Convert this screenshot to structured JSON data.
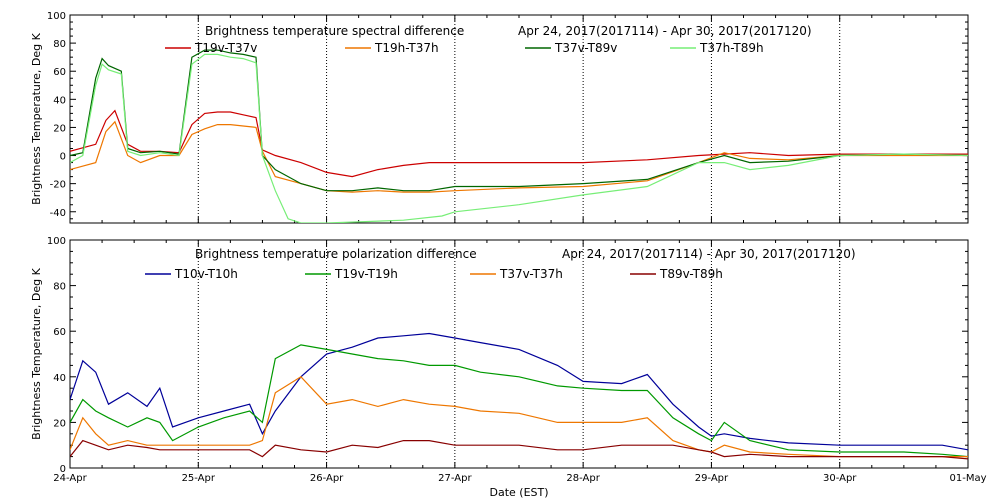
{
  "chart_data": [
    {
      "type": "line",
      "title": "Brightness temperature spectral difference",
      "date_range": "Apr 24, 2017(2017114)  - Apr 30, 2017(2017120)",
      "xlabel": "",
      "ylabel": "Brightness Temperature, Deg K",
      "ylim": [
        -48,
        100
      ],
      "yticks": [
        -40,
        -20,
        0,
        20,
        40,
        60,
        80,
        100
      ],
      "xlim": [
        0,
        7
      ],
      "xticks": [
        0,
        1,
        2,
        3,
        4,
        5,
        6,
        7
      ],
      "xtick_labels": [
        "",
        "",
        "",
        "",
        "",
        "",
        "",
        ""
      ],
      "grid": "vertical dotted at day boundaries",
      "legend_position": "top",
      "series": [
        {
          "name": "T19v-T37v",
          "color": "#cc0000",
          "x": [
            0,
            0.2,
            0.28,
            0.35,
            0.45,
            0.55,
            0.7,
            0.85,
            0.95,
            1.05,
            1.15,
            1.25,
            1.35,
            1.45,
            1.5,
            1.6,
            1.8,
            2.0,
            2.2,
            2.4,
            2.6,
            2.8,
            3.0,
            3.5,
            4.0,
            4.5,
            4.9,
            5.1,
            5.3,
            5.6,
            6.0,
            6.5,
            7.0
          ],
          "y": [
            3,
            8,
            25,
            32,
            8,
            3,
            3,
            2,
            22,
            30,
            31,
            31,
            29,
            27,
            4,
            0,
            -5,
            -12,
            -15,
            -10,
            -7,
            -5,
            -5,
            -5,
            -5,
            -3,
            0,
            1,
            2,
            0,
            1,
            1,
            1
          ]
        },
        {
          "name": "T19h-T37h",
          "color": "#ee7700",
          "x": [
            0,
            0.2,
            0.28,
            0.35,
            0.45,
            0.55,
            0.7,
            0.85,
            0.95,
            1.05,
            1.15,
            1.25,
            1.35,
            1.45,
            1.5,
            1.6,
            1.8,
            2.0,
            2.2,
            2.4,
            2.6,
            2.8,
            3.0,
            3.5,
            4.0,
            4.5,
            4.9,
            5.1,
            5.3,
            5.6,
            6.0,
            6.5,
            7.0
          ],
          "y": [
            -10,
            -5,
            17,
            24,
            0,
            -5,
            0,
            0,
            15,
            19,
            22,
            22,
            21,
            20,
            3,
            -15,
            -20,
            -25,
            -26,
            -25,
            -26,
            -26,
            -25,
            -23,
            -22,
            -18,
            -5,
            2,
            -2,
            -3,
            0,
            0,
            0
          ]
        },
        {
          "name": "T37v-T89v",
          "color": "#006600",
          "x": [
            0,
            0.1,
            0.2,
            0.25,
            0.3,
            0.4,
            0.45,
            0.55,
            0.7,
            0.85,
            0.95,
            1.05,
            1.15,
            1.25,
            1.35,
            1.45,
            1.5,
            1.6,
            1.8,
            2.0,
            2.2,
            2.4,
            2.6,
            2.8,
            3.0,
            3.5,
            4.0,
            4.5,
            4.9,
            5.1,
            5.3,
            5.6,
            6.0,
            6.5,
            7.0
          ],
          "y": [
            0,
            2,
            55,
            69,
            64,
            60,
            5,
            2,
            3,
            1,
            70,
            75,
            75,
            73,
            72,
            70,
            0,
            -10,
            -20,
            -25,
            -25,
            -23,
            -25,
            -25,
            -22,
            -22,
            -20,
            -17,
            -5,
            0,
            -5,
            -4,
            0,
            1,
            0
          ]
        },
        {
          "name": "T37h-T89h",
          "color": "#77ee77",
          "x": [
            0,
            0.1,
            0.2,
            0.25,
            0.3,
            0.4,
            0.45,
            0.55,
            0.7,
            0.85,
            0.95,
            1.05,
            1.15,
            1.25,
            1.35,
            1.45,
            1.5,
            1.6,
            1.7,
            1.8,
            2.0,
            2.3,
            2.6,
            2.9,
            3.0,
            3.5,
            4.0,
            4.5,
            4.9,
            5.1,
            5.3,
            5.6,
            6.0,
            6.5,
            7.0
          ],
          "y": [
            -5,
            0,
            50,
            65,
            61,
            58,
            3,
            0,
            2,
            0,
            65,
            72,
            72,
            70,
            69,
            66,
            0,
            -25,
            -45,
            -48,
            -48,
            -47,
            -46,
            -43,
            -40,
            -35,
            -28,
            -22,
            -5,
            -5,
            -10,
            -7,
            0,
            1,
            0
          ]
        }
      ]
    },
    {
      "type": "line",
      "title": "Brightness temperature polarization difference",
      "date_range": "Apr 24, 2017(2017114)  - Apr 30, 2017(2017120)",
      "xlabel": "Date (EST)",
      "ylabel": "Brightness Temperature, Deg K",
      "ylim": [
        0,
        100
      ],
      "yticks": [
        0,
        20,
        40,
        60,
        80,
        100
      ],
      "xlim": [
        0,
        7
      ],
      "xticks": [
        0,
        1,
        2,
        3,
        4,
        5,
        6,
        7
      ],
      "xtick_labels": [
        "24-Apr",
        "25-Apr",
        "26-Apr",
        "27-Apr",
        "28-Apr",
        "29-Apr",
        "30-Apr",
        "01-May"
      ],
      "grid": "vertical dotted at day boundaries",
      "legend_position": "top",
      "series": [
        {
          "name": "T10v-T10h",
          "color": "#000099",
          "x": [
            0,
            0.1,
            0.2,
            0.3,
            0.45,
            0.6,
            0.7,
            0.8,
            1.0,
            1.2,
            1.4,
            1.5,
            1.6,
            1.8,
            2.0,
            2.2,
            2.4,
            2.6,
            2.8,
            3.0,
            3.2,
            3.5,
            3.8,
            4.0,
            4.3,
            4.5,
            4.7,
            4.9,
            5.0,
            5.1,
            5.3,
            5.6,
            6.0,
            6.5,
            6.8,
            7.0
          ],
          "y": [
            30,
            47,
            42,
            28,
            33,
            27,
            35,
            18,
            22,
            25,
            28,
            15,
            25,
            40,
            50,
            53,
            57,
            58,
            59,
            57,
            55,
            52,
            45,
            38,
            37,
            41,
            28,
            18,
            14,
            15,
            13,
            11,
            10,
            10,
            10,
            8
          ]
        },
        {
          "name": "T19v-T19h",
          "color": "#009900",
          "x": [
            0,
            0.1,
            0.2,
            0.3,
            0.45,
            0.6,
            0.7,
            0.8,
            1.0,
            1.2,
            1.4,
            1.5,
            1.6,
            1.8,
            2.0,
            2.2,
            2.4,
            2.6,
            2.8,
            3.0,
            3.2,
            3.5,
            3.8,
            4.0,
            4.3,
            4.5,
            4.7,
            4.9,
            5.0,
            5.1,
            5.3,
            5.6,
            6.0,
            6.5,
            6.8,
            7.0
          ],
          "y": [
            20,
            30,
            25,
            22,
            18,
            22,
            20,
            12,
            18,
            22,
            25,
            20,
            48,
            54,
            52,
            50,
            48,
            47,
            45,
            45,
            42,
            40,
            36,
            35,
            34,
            34,
            22,
            15,
            12,
            20,
            12,
            8,
            7,
            7,
            6,
            5
          ]
        },
        {
          "name": "T37v-T37h",
          "color": "#ee7700",
          "x": [
            0,
            0.1,
            0.2,
            0.3,
            0.45,
            0.6,
            0.7,
            0.8,
            1.0,
            1.2,
            1.4,
            1.5,
            1.6,
            1.8,
            2.0,
            2.2,
            2.4,
            2.6,
            2.8,
            3.0,
            3.2,
            3.5,
            3.8,
            4.0,
            4.3,
            4.5,
            4.7,
            4.9,
            5.0,
            5.1,
            5.3,
            5.6,
            6.0,
            6.5,
            6.8,
            7.0
          ],
          "y": [
            8,
            22,
            15,
            10,
            12,
            10,
            10,
            10,
            10,
            10,
            10,
            12,
            33,
            40,
            28,
            30,
            27,
            30,
            28,
            27,
            25,
            24,
            20,
            20,
            20,
            22,
            12,
            8,
            7,
            10,
            7,
            6,
            5,
            5,
            5,
            5
          ]
        },
        {
          "name": "T89v-T89h",
          "color": "#880000",
          "x": [
            0,
            0.1,
            0.2,
            0.3,
            0.45,
            0.6,
            0.7,
            0.8,
            1.0,
            1.2,
            1.4,
            1.5,
            1.6,
            1.8,
            2.0,
            2.2,
            2.4,
            2.6,
            2.8,
            3.0,
            3.2,
            3.5,
            3.8,
            4.0,
            4.3,
            4.5,
            4.7,
            4.9,
            5.0,
            5.1,
            5.3,
            5.6,
            6.0,
            6.5,
            6.8,
            7.0
          ],
          "y": [
            5,
            12,
            10,
            8,
            10,
            9,
            8,
            8,
            8,
            8,
            8,
            5,
            10,
            8,
            7,
            10,
            9,
            12,
            12,
            10,
            10,
            10,
            8,
            8,
            10,
            10,
            10,
            8,
            7,
            5,
            6,
            5,
            5,
            5,
            5,
            4
          ]
        }
      ]
    }
  ]
}
